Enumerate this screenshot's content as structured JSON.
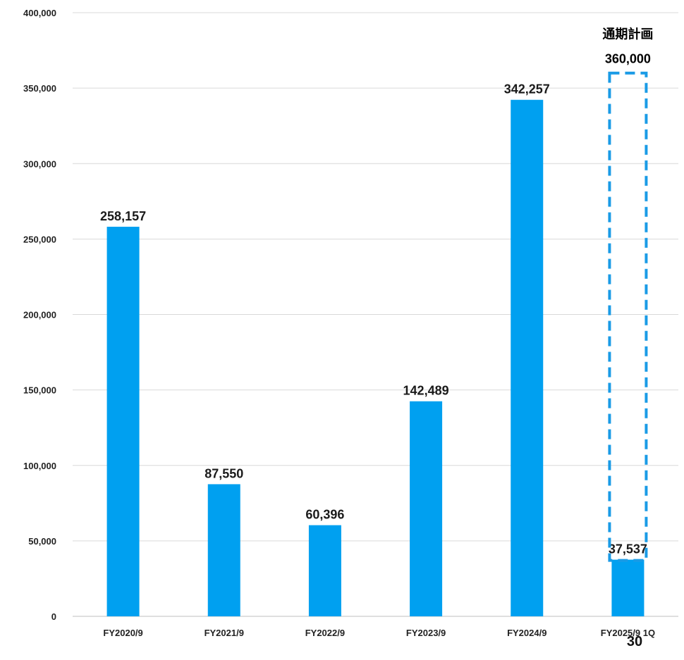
{
  "chart_data": {
    "type": "bar",
    "categories": [
      "FY2020/9",
      "FY2021/9",
      "FY2022/9",
      "FY2023/9",
      "FY2024/9",
      "FY2025/9 1Q"
    ],
    "values": [
      258157,
      87550,
      60396,
      142489,
      342257,
      37537
    ],
    "data_labels": [
      "258,157",
      "87,550",
      "60,396",
      "142,489",
      "342,257",
      "37,537"
    ],
    "ylim": [
      0,
      400000
    ],
    "yticks": [
      0,
      50000,
      100000,
      150000,
      200000,
      250000,
      300000,
      350000,
      400000
    ],
    "ytick_labels": [
      "0",
      "50,000",
      "100,000",
      "150,000",
      "200,000",
      "250,000",
      "300,000",
      "350,000",
      "400,000"
    ],
    "grid": true,
    "bar_color": "#00a0f0",
    "plan": {
      "category": "FY2025/9 1Q",
      "title": "通期計画",
      "value": 360000,
      "value_label": "360,000",
      "style": "dashed outline",
      "color": "#1a9be6"
    }
  },
  "page_number": "30"
}
